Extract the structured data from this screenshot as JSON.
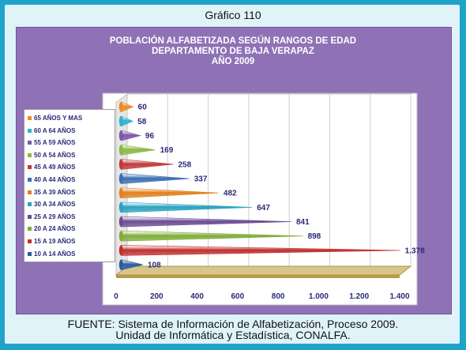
{
  "figure_label": "Gráfico 110",
  "chart_data": {
    "type": "bar",
    "orientation": "horizontal",
    "title_lines": [
      "POBLACIÓN ALFABETIZADA SEGÚN RANGOS DE EDAD",
      "DEPARTAMENTO DE BAJA VERAPAZ",
      "AÑO 2009"
    ],
    "categories": [
      "10 A 14 AÑOS",
      "15 A 19 AÑOS",
      "20 A 24 AÑOS",
      "25 A 29 AÑOS",
      "30 A 34 AÑOS",
      "35 A 39 AÑOS",
      "40 A 44 AÑOS",
      "45 A 49 AÑOS",
      "50 A 54 AÑOS",
      "55 A 59 AÑOS",
      "60 A 64 AÑOS",
      "65 AÑOS Y MAS"
    ],
    "values": [
      108,
      1378,
      898,
      841,
      647,
      482,
      337,
      258,
      169,
      96,
      58,
      60
    ],
    "value_labels": [
      "108",
      "1.378",
      "898",
      "841",
      "647",
      "482",
      "337",
      "258",
      "169",
      "96",
      "58",
      "60"
    ],
    "colors": [
      "#2d5aa0",
      "#c0302e",
      "#7fad3a",
      "#6a4c93",
      "#2aa3c0",
      "#e2801e",
      "#3a6fb0",
      "#c13a3a",
      "#8bb944",
      "#7d58a8",
      "#2fb2cc",
      "#f08a24"
    ],
    "xlim": [
      0,
      1400
    ],
    "xticks": [
      0,
      200,
      400,
      600,
      800,
      1000,
      1200,
      1400
    ],
    "xtick_labels": [
      "0",
      "200",
      "400",
      "600",
      "800",
      "1.000",
      "1.200",
      "1.400"
    ],
    "grid": true,
    "legend_position": "left"
  },
  "footer_lines": [
    "FUENTE: Sistema de Información de Alfabetización, Proceso 2009.",
    "Unidad de Informática y Estadística, CONALFA."
  ]
}
